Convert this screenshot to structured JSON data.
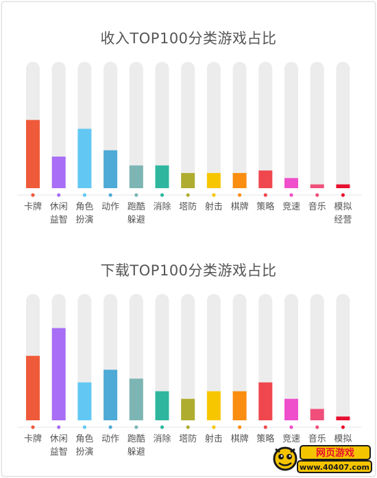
{
  "chart_data": [
    {
      "type": "bar",
      "title": "收入TOP100分类游戏占比",
      "categories": [
        [
          "卡牌"
        ],
        [
          "休闲",
          "益智"
        ],
        [
          "角色",
          "扮演"
        ],
        [
          "动作"
        ],
        [
          "跑酷",
          "躲避"
        ],
        [
          "消除"
        ],
        [
          "塔防"
        ],
        [
          "射击"
        ],
        [
          "棋牌"
        ],
        [
          "策略"
        ],
        [
          "竞速"
        ],
        [
          "音乐"
        ],
        [
          "模拟",
          "经营"
        ]
      ],
      "values": [
        54,
        25,
        47,
        30,
        18,
        18,
        12,
        12,
        12,
        14,
        8,
        3,
        3
      ],
      "ylim": [
        0,
        100
      ],
      "colors": [
        "#ef5a3a",
        "#a86ef5",
        "#62c8f3",
        "#4eaad6",
        "#7cb5b4",
        "#2eb79e",
        "#aead2f",
        "#f8c600",
        "#fb8d10",
        "#f0474e",
        "#ef4fca",
        "#ef4f7a",
        "#e8102f"
      ],
      "track_color": "#ececec"
    },
    {
      "type": "bar",
      "title": "下载TOP100分类游戏占比",
      "categories": [
        [
          "卡牌"
        ],
        [
          "休闲",
          "益智"
        ],
        [
          "角色",
          "扮演"
        ],
        [
          "动作"
        ],
        [
          "跑酷",
          "躲避"
        ],
        [
          "消除"
        ],
        [
          "塔防"
        ],
        [
          "射击"
        ],
        [
          "棋牌"
        ],
        [
          "策略"
        ],
        [
          "竞速"
        ],
        [
          "音乐"
        ],
        [
          "模拟",
          "经营"
        ]
      ],
      "values": [
        51,
        73,
        30,
        40,
        33,
        23,
        17,
        23,
        23,
        30,
        17,
        9,
        3
      ],
      "ylim": [
        0,
        100
      ],
      "colors": [
        "#ef5a3a",
        "#a86ef5",
        "#62c8f3",
        "#4eaad6",
        "#7cb5b4",
        "#2eb79e",
        "#aead2f",
        "#f8c600",
        "#fb8d10",
        "#f0474e",
        "#ef4fca",
        "#ef4f7a",
        "#e8102f"
      ],
      "track_color": "#ececec"
    }
  ],
  "watermark": {
    "top_text": "网页游戏",
    "bottom_text": "www.40407.com",
    "colors": {
      "bg": "#f5c400",
      "text_top": "#e8102f",
      "text_bottom": "#1a1a1a"
    }
  }
}
